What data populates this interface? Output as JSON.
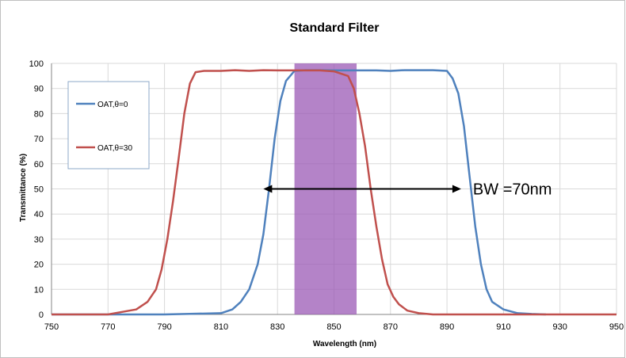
{
  "chart_data": {
    "type": "line",
    "title": "Standard Filter",
    "xlabel": "Wavelength (nm)",
    "ylabel": "Transmittance (%)",
    "xlim": [
      750,
      950
    ],
    "ylim": [
      0,
      100
    ],
    "x_ticks": [
      "750",
      "770",
      "790",
      "810",
      "830",
      "850",
      "870",
      "890",
      "910",
      "930",
      "950"
    ],
    "y_ticks": [
      "0",
      "10",
      "20",
      "30",
      "40",
      "50",
      "60",
      "70",
      "80",
      "90",
      "100"
    ],
    "grid": true,
    "legend_position": "top-left",
    "series": [
      {
        "name": "OAT,θ=0",
        "color": "#4f81bd",
        "x": [
          750,
          770,
          790,
          810,
          814,
          817,
          820,
          823,
          825,
          827,
          829,
          831,
          833,
          836,
          840,
          845,
          850,
          855,
          860,
          865,
          870,
          875,
          880,
          885,
          890,
          892,
          894,
          896,
          898,
          900,
          902,
          904,
          906,
          910,
          915,
          920,
          925
        ],
        "y": [
          0,
          0,
          0,
          0.5,
          2,
          5,
          10,
          20,
          32,
          50,
          70,
          85,
          93,
          97,
          97.3,
          97.3,
          97.2,
          97.2,
          97.2,
          97.2,
          97,
          97.3,
          97.3,
          97.3,
          97,
          94,
          88,
          75,
          55,
          35,
          20,
          10,
          5,
          2,
          0.5,
          0.2,
          0
        ]
      },
      {
        "name": "OAT,θ=30",
        "color": "#c0504d",
        "x": [
          750,
          770,
          775,
          780,
          784,
          787,
          789,
          791,
          793,
          795,
          797,
          799,
          801,
          804,
          810,
          815,
          820,
          825,
          830,
          835,
          840,
          845,
          850,
          855,
          857,
          859,
          861,
          863,
          865,
          867,
          869,
          871,
          873,
          876,
          880,
          885,
          890,
          900,
          950
        ],
        "y": [
          0,
          0,
          1,
          2,
          5,
          10,
          18,
          30,
          45,
          62,
          80,
          92,
          96.5,
          97,
          97,
          97.3,
          97,
          97.3,
          97.2,
          97.2,
          97.2,
          97.2,
          96.8,
          95,
          90,
          80,
          67,
          50,
          35,
          22,
          12,
          7,
          4,
          1.5,
          0.5,
          0,
          0,
          0,
          0
        ]
      }
    ],
    "highlight_band": {
      "x_start": 836,
      "x_end": 858,
      "color": "#9b59b6"
    },
    "annotation": {
      "text": "BW =70nm",
      "x_start": 825,
      "x_end": 895,
      "y": 50
    }
  }
}
